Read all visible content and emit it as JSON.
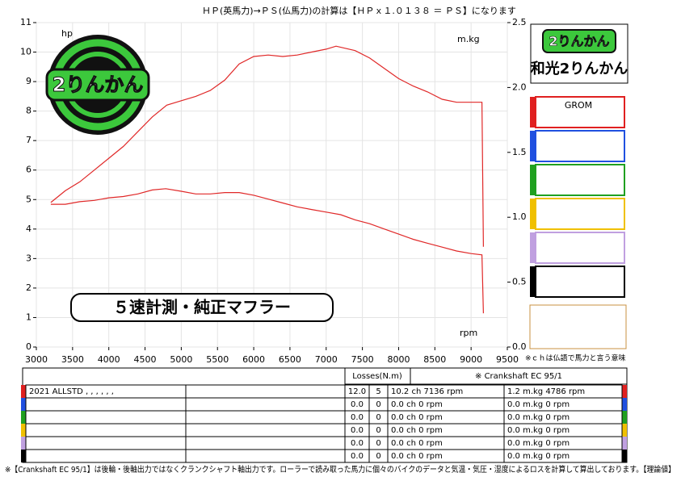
{
  "chart_data": {
    "type": "line",
    "title": "ＨＰ(英馬力)→ＰＳ(仏馬力)の計算は【ＨＰｘ１.０１３８ ＝ ＰＳ】になります",
    "y_label": "hp",
    "y2_label": "m.kg",
    "x_label": "rpm",
    "annotation": "５速計測・純正マフラー",
    "xlim": [
      3000,
      9500
    ],
    "xticks": [
      3000,
      3500,
      4000,
      4500,
      5000,
      5500,
      6000,
      6500,
      7000,
      7500,
      8000,
      8500,
      9000,
      9500
    ],
    "ylim": [
      0,
      11
    ],
    "yticks": [
      0,
      1,
      2,
      3,
      4,
      5,
      6,
      7,
      8,
      9,
      10,
      11
    ],
    "y2lim": [
      0,
      2.5
    ],
    "y2ticks": [
      {
        "value": 0,
        "label": "0.0"
      },
      0.5,
      {
        "value": 1,
        "label": "1.0"
      },
      1.5,
      {
        "value": 2,
        "label": "2.0"
      },
      2.5
    ],
    "grid": true,
    "series": [
      {
        "color": "#e02828",
        "x": [
          3200,
          3400,
          3600,
          3800,
          4000,
          4200,
          4400,
          4600,
          4800,
          5000,
          5200,
          5400,
          5600,
          5800,
          6000,
          6200,
          6400,
          6600,
          6800,
          7000,
          7136,
          7400,
          7600,
          7800,
          8000,
          8200,
          8400,
          8600,
          8800,
          9000,
          9150,
          9170
        ],
        "values": [
          4.9,
          5.3,
          5.6,
          6.0,
          6.4,
          6.8,
          7.3,
          7.8,
          8.2,
          8.35,
          8.5,
          8.7,
          9.05,
          9.6,
          9.85,
          9.9,
          9.85,
          9.9,
          10.0,
          10.1,
          10.2,
          10.05,
          9.8,
          9.45,
          9.1,
          8.85,
          8.65,
          8.4,
          8.3,
          8.3,
          8.3,
          3.4
        ]
      },
      {
        "color": "#e02828",
        "axis": "y2",
        "x": [
          3200,
          3400,
          3600,
          3800,
          4000,
          4200,
          4400,
          4600,
          4786,
          5000,
          5200,
          5400,
          5600,
          5800,
          6000,
          6200,
          6400,
          6600,
          6800,
          7000,
          7200,
          7400,
          7600,
          7800,
          8000,
          8200,
          8400,
          8600,
          8800,
          9000,
          9150,
          9170
        ],
        "values": [
          1.1,
          1.1,
          1.12,
          1.13,
          1.15,
          1.16,
          1.18,
          1.21,
          1.22,
          1.2,
          1.18,
          1.18,
          1.19,
          1.19,
          1.17,
          1.14,
          1.11,
          1.08,
          1.06,
          1.04,
          1.02,
          0.98,
          0.95,
          0.91,
          0.87,
          0.83,
          0.8,
          0.77,
          0.74,
          0.72,
          0.71,
          0.26
        ]
      }
    ]
  },
  "brand": {
    "logo": "2りんかん",
    "shop": "和光2りんかん"
  },
  "legend": {
    "colors": [
      "#e02020",
      "#2050e0",
      "#20a020",
      "#f0c000",
      "#c0a0e0",
      "#000000"
    ],
    "labels": [
      "GROM"
    ]
  },
  "note_ch": "※ｃｈは仏語で馬力と言う意味",
  "table": {
    "header": [
      "Losses(N.m)",
      "※ Crankshaft EC 95/1"
    ],
    "rows": [
      {
        "name": "2021 ALLSTD , , , , , ,",
        "cells": [
          "12.0",
          "5",
          "10.2 ch 7136 rpm",
          "1.2 m.kg 4786 rpm"
        ]
      },
      {
        "cells": [
          "0.0",
          "0",
          "0.0 ch 0 rpm",
          "0.0 m.kg 0 rpm"
        ]
      },
      {
        "cells": [
          "0.0",
          "0",
          "0.0 ch 0 rpm",
          "0.0 m.kg 0 rpm"
        ]
      },
      {
        "cells": [
          "0.0",
          "0",
          "0.0 ch 0 rpm",
          "0.0 m.kg 0 rpm"
        ]
      },
      {
        "cells": [
          "0.0",
          "0",
          "0.0 ch 0 rpm",
          "0.0 m.kg 0 rpm"
        ]
      },
      {
        "cells": [
          "0.0",
          "0",
          "0.0 ch 0 rpm",
          "0.0 m.kg 0 rpm"
        ]
      }
    ]
  },
  "footer": "※【Crankshaft EC 95/1】は後輪・後軸出力ではなくクランクシャフト軸出力です。ローラーで読み取った馬力に個々のバイクのデータと気温・気圧・湿度によるロスを計算して算出しております。【理論値】"
}
